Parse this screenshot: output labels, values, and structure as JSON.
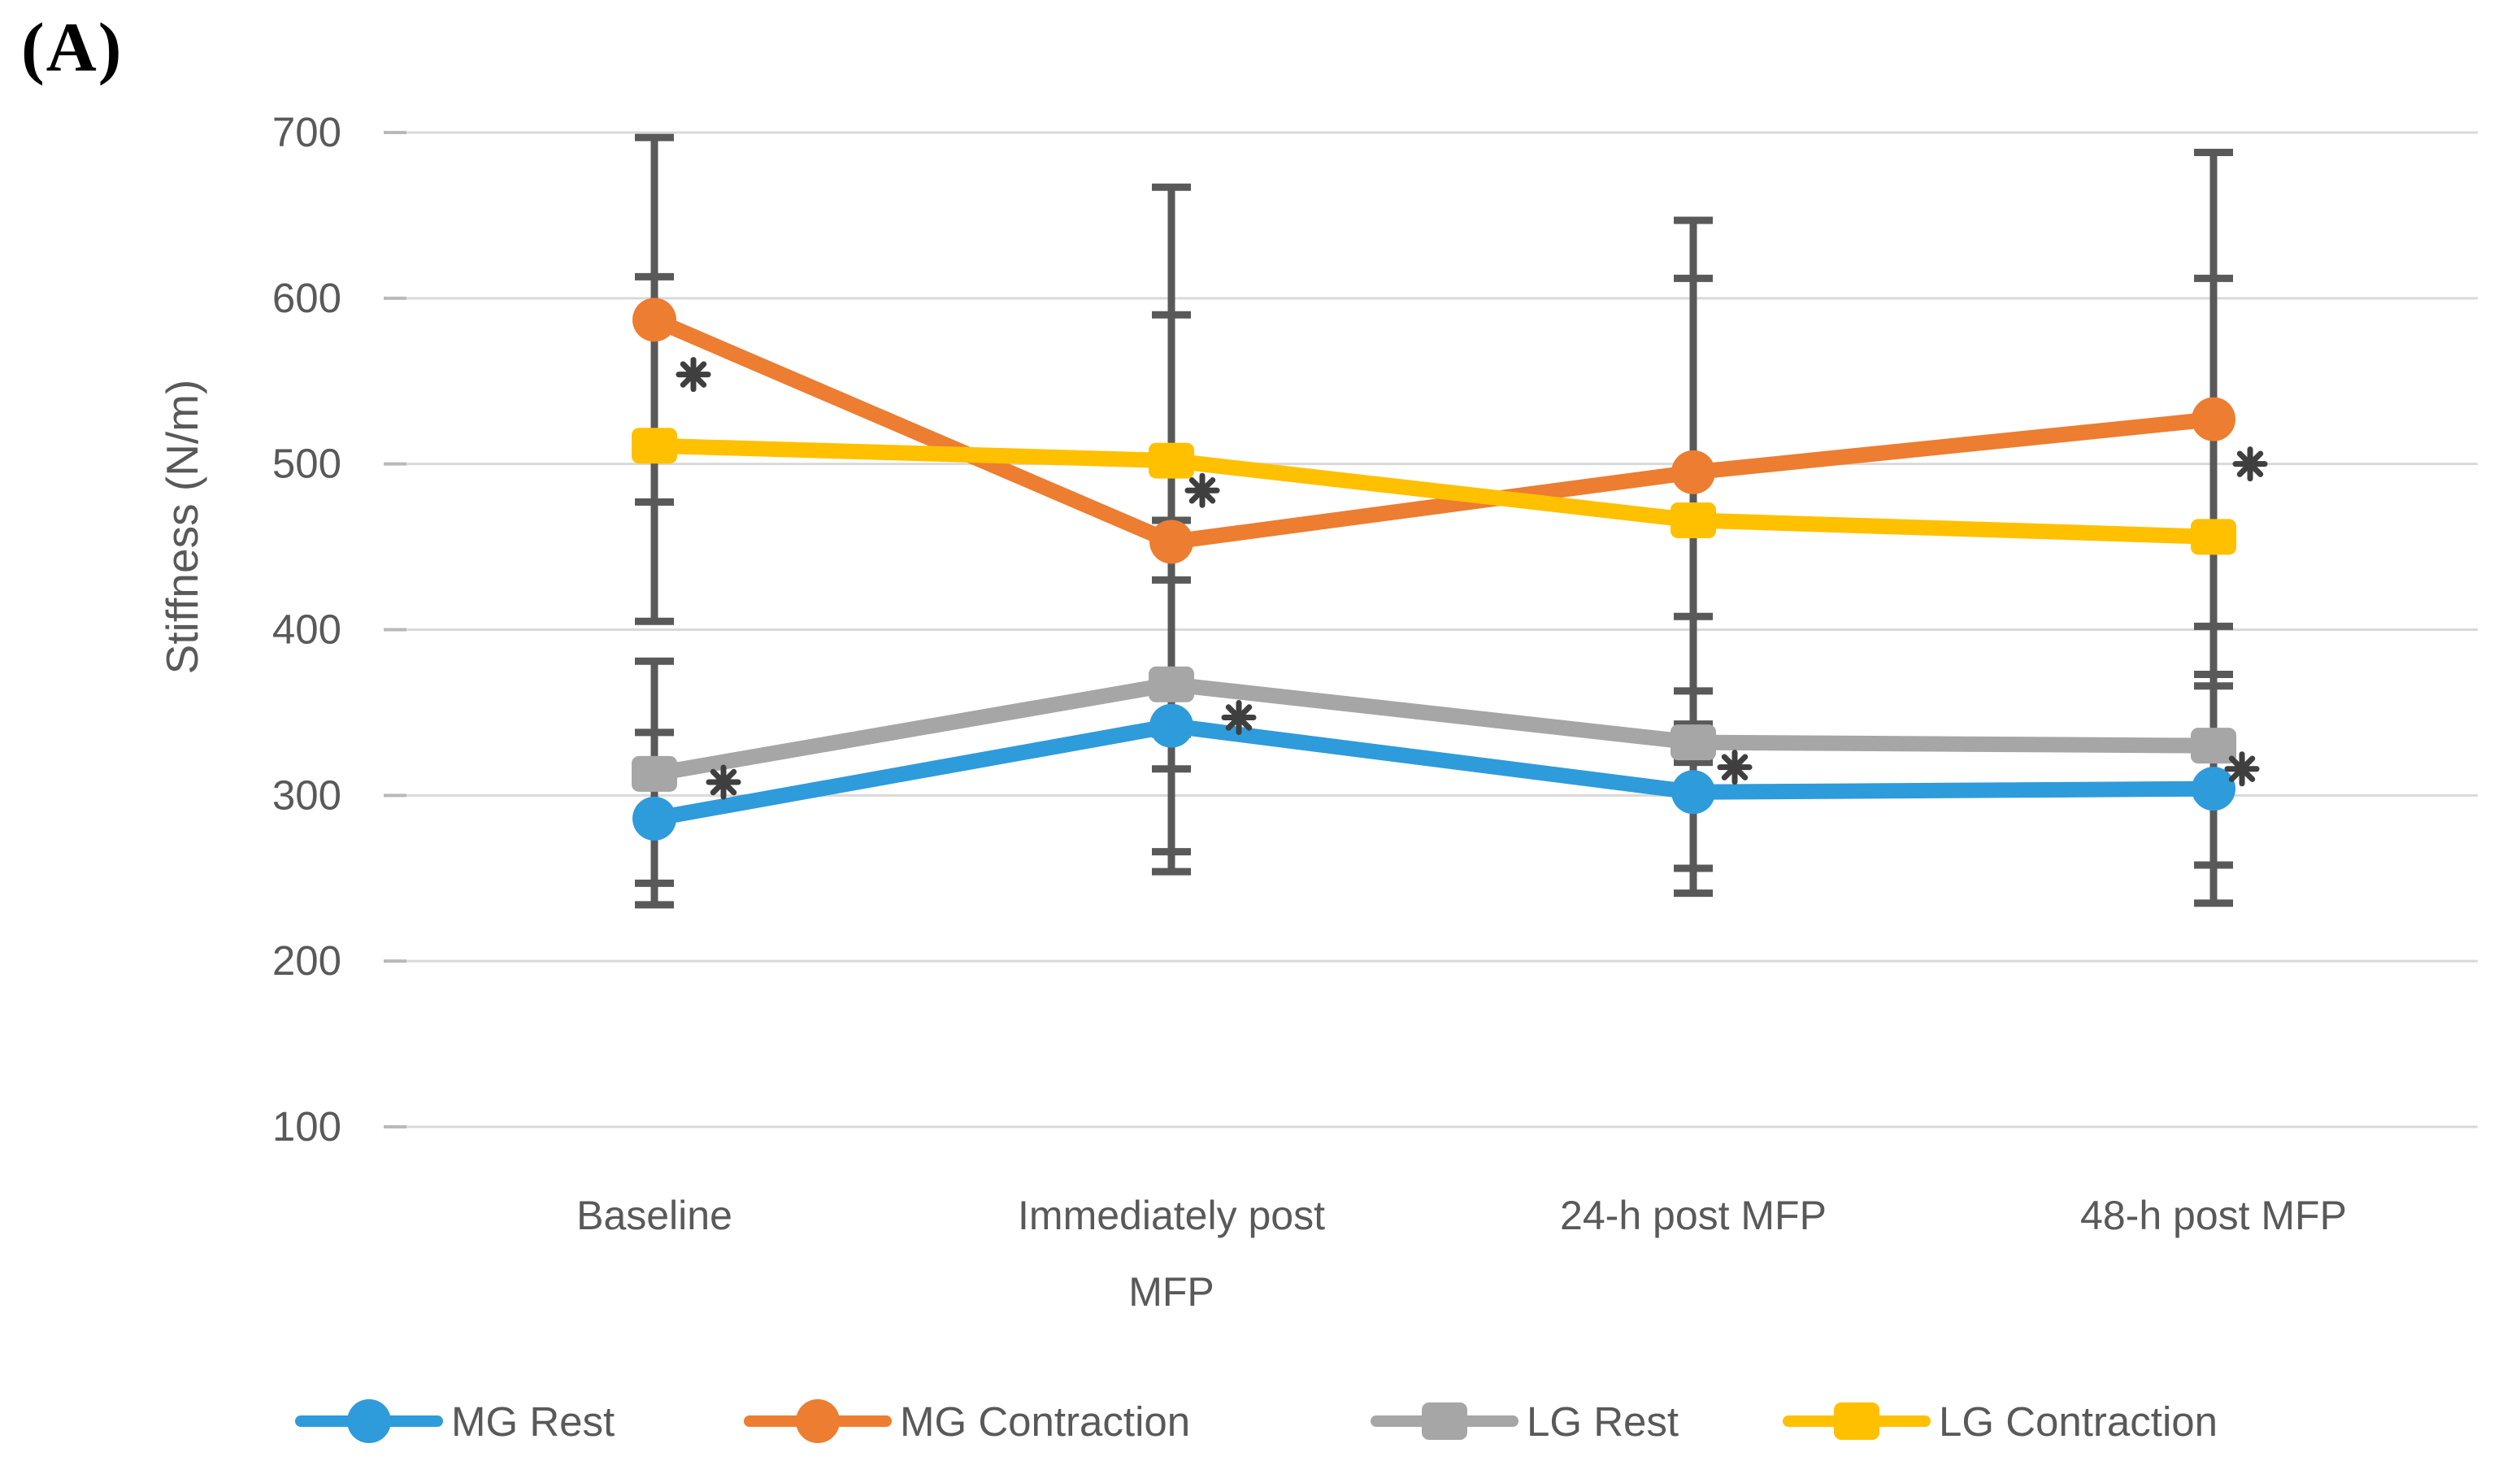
{
  "panel_label": "(A)",
  "chart_data": {
    "type": "line",
    "title": "",
    "xlabel": "",
    "ylabel": "Stiffness (N/m)",
    "ylim": [
      100,
      700
    ],
    "yticks": [
      700,
      600,
      500,
      400,
      300,
      200,
      100
    ],
    "grid": "horizontal-light-gray",
    "legend_position": "bottom",
    "categories": [
      "Baseline",
      "Immediately post\nMFP",
      "24-h  post MFP",
      "48-h post MFP"
    ],
    "series": [
      {
        "name": "MG Rest",
        "color": "#2E9BDB",
        "marker": "circle",
        "values": [
          286,
          342,
          302,
          304
        ],
        "error_upper": [
          338,
          430,
          363,
          373
        ],
        "error_lower": [
          234,
          254,
          241,
          235
        ]
      },
      {
        "name": "MG Contraction",
        "color": "#ED7D31",
        "marker": "circle",
        "values": [
          587,
          453,
          495,
          527
        ],
        "error_upper": [
          697,
          590,
          647,
          688
        ],
        "error_lower": [
          477,
          316,
          343,
          366
        ]
      },
      {
        "name": "LG Rest",
        "color": "#A6A6A6",
        "marker": "square",
        "values": [
          313,
          367,
          332,
          330
        ],
        "error_upper": [
          381,
          466,
          408,
          402
        ],
        "error_lower": [
          247,
          266,
          256,
          258
        ]
      },
      {
        "name": "LG Contraction",
        "color": "#FFC000",
        "marker": "square",
        "values": [
          511,
          502,
          466,
          456
        ],
        "error_upper": [
          613,
          667,
          612,
          612
        ],
        "error_lower": [
          405,
          337,
          320,
          300
        ]
      }
    ],
    "error_bar_color": "#595959",
    "significance_symbol": "*",
    "significance_markers": [
      {
        "category_index": 0,
        "value": 554,
        "dx": 48
      },
      {
        "category_index": 0,
        "value": 308,
        "dx": 85
      },
      {
        "category_index": 1,
        "value": 484,
        "dx": 38
      },
      {
        "category_index": 1,
        "value": 347,
        "dx": 83
      },
      {
        "category_index": 2,
        "value": 317,
        "dx": 51
      },
      {
        "category_index": 3,
        "value": 500,
        "dx": 45
      },
      {
        "category_index": 3,
        "value": 316,
        "dx": 35
      }
    ]
  }
}
